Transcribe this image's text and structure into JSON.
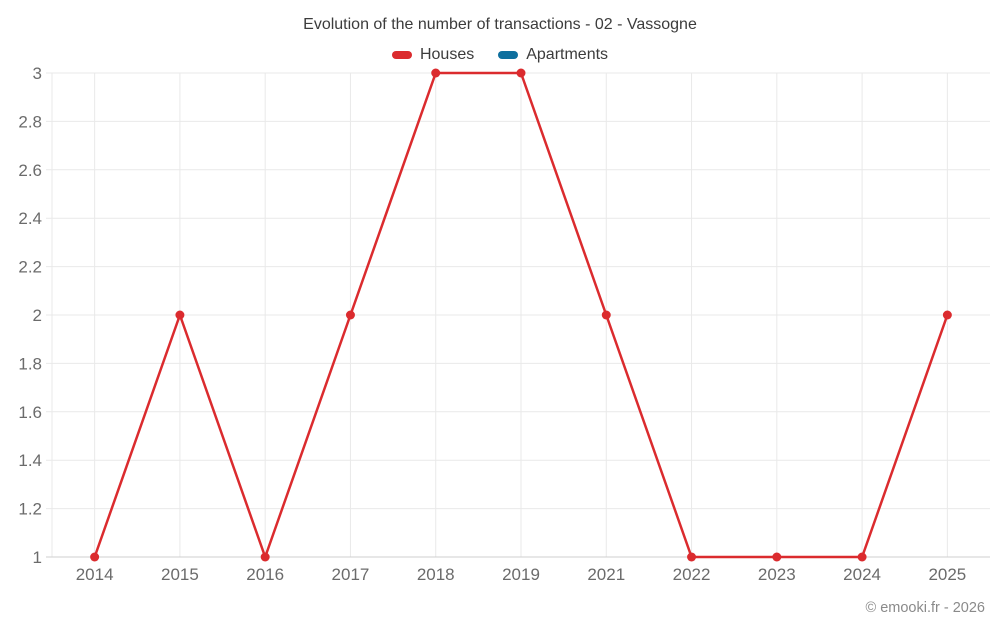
{
  "copyright": "© emooki.fr - 2026",
  "chart_data": {
    "type": "line",
    "title": "Evolution of the number of transactions - 02 - Vassogne",
    "categories": [
      "2014",
      "2015",
      "2016",
      "2017",
      "2018",
      "2019",
      "2021",
      "2022",
      "2023",
      "2024",
      "2025"
    ],
    "series": [
      {
        "name": "Houses",
        "color": "#db2b2e",
        "values": [
          1,
          2,
          1,
          2,
          3,
          3,
          2,
          1,
          1,
          1,
          2
        ]
      },
      {
        "name": "Apartments",
        "color": "#0e6f9e",
        "values": []
      }
    ],
    "xlabel": "",
    "ylabel": "",
    "ylim": [
      1,
      3
    ],
    "yticks": [
      1,
      1.2,
      1.4,
      1.6,
      1.8,
      2,
      2.2,
      2.4,
      2.6,
      2.8,
      3
    ],
    "grid": true,
    "legend_position": "top",
    "colors": {
      "grid_line": "#e9e9e9",
      "axis_line": "#cfcfcf",
      "tick_label": "#6b6b6b",
      "title_text": "#3c3c3c",
      "copyright_text": "#8a8a8a"
    }
  }
}
